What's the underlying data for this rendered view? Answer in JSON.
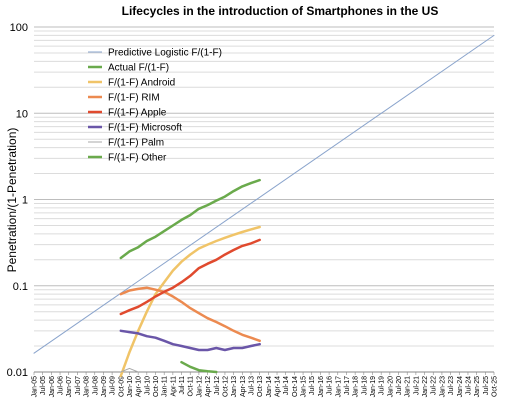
{
  "chart_data": {
    "type": "line",
    "title": "Lifecycles in the introduction of Smartphones in the US",
    "ylabel": "Penetration/(1-Penetration)",
    "xlabel": "",
    "yscale": "log",
    "ylim": [
      0.01,
      100
    ],
    "yticks": [
      {
        "value": 0.01,
        "label": "0.01"
      },
      {
        "value": 0.1,
        "label": "0.1"
      },
      {
        "value": 1,
        "label": "1"
      },
      {
        "value": 10,
        "label": "10"
      },
      {
        "value": 100,
        "label": "100"
      }
    ],
    "grid": "horizontal minor lines (log)",
    "legend_position": "top-left",
    "x_categories": [
      "Jan-05",
      "Jul-05",
      "Jan-06",
      "Jul-06",
      "Jan-07",
      "Jul-07",
      "Jan-08",
      "Jul-08",
      "Jan-09",
      "Jul-09",
      "Oct-09",
      "Jan-10",
      "Apr-10",
      "Jul-10",
      "Oct-10",
      "Jan-11",
      "Apr-11",
      "Jul-11",
      "Oct-11",
      "Jan-12",
      "Apr-12",
      "Jul-12",
      "Oct-12",
      "Jan-13",
      "Apr-13",
      "Jul-13",
      "Oct-13",
      "Jan-14",
      "Apr-14",
      "Jul-14",
      "Oct-14",
      "Jan-15",
      "Jul-15",
      "Jan-16",
      "Jul-16",
      "Jan-17",
      "Jul-17",
      "Jan-18",
      "Jul-18",
      "Jan-19",
      "Jul-19",
      "Jan-20",
      "Jul-20",
      "Jan-21",
      "Jul-21",
      "Jan-22",
      "Jul-22",
      "Jan-23",
      "Jul-23",
      "Jan-24",
      "Jul-24",
      "Jan-25",
      "Jul-25",
      "Oct-25"
    ],
    "x_tick_labels": [
      "Jan-05",
      "Jul-05",
      "Jan-06",
      "Jul-06",
      "Jan-07",
      "Jul-07",
      "Jan-08",
      "Jul-08",
      "Jan-09",
      "Jul-09",
      "Oct-09",
      "Jan-10",
      "Apr-10",
      "Jul-10",
      "Oct-10",
      "Jan-11",
      "Apr-11",
      "Jul-11",
      "Oct-11",
      "Jan-12",
      "Apr-12",
      "Jul-12",
      "Oct-12",
      "Jan-13",
      "Apr-13",
      "Jul-13",
      "Oct-13",
      "Jan-14",
      "Apr-14",
      "Jul-14",
      "Oct-14",
      "Jan-15",
      "Jul-15",
      "Jan-16",
      "Jul-16",
      "Jan-17",
      "Jul-17",
      "Jan-18",
      "Jul-18",
      "Jan-19",
      "Jul-19",
      "Jan-20",
      "Jul-20",
      "Jan-21",
      "Jul-21",
      "Jan-22",
      "Jul-22",
      "Jan-23",
      "Jul-23",
      "Jan-24",
      "Jul-24",
      "Jan-25",
      "Jul-25",
      "Oct-25"
    ],
    "series": [
      {
        "name": "Predictive Logistic F/(1-F)",
        "color": "#8aa4cc",
        "width": 1,
        "points": [
          [
            "Jan-05",
            0.0165
          ],
          [
            "Oct-25",
            80
          ]
        ]
      },
      {
        "name": "Actual F/(1-F)",
        "color": "#6aaa4c",
        "width": 2.5,
        "points": [
          [
            "Oct-09",
            0.21
          ],
          [
            "Jan-10",
            0.25
          ],
          [
            "Apr-10",
            0.28
          ],
          [
            "Jul-10",
            0.33
          ],
          [
            "Oct-10",
            0.37
          ],
          [
            "Jan-11",
            0.43
          ],
          [
            "Apr-11",
            0.5
          ],
          [
            "Jul-11",
            0.58
          ],
          [
            "Oct-11",
            0.66
          ],
          [
            "Jan-12",
            0.78
          ],
          [
            "Apr-12",
            0.86
          ],
          [
            "Jul-12",
            0.97
          ],
          [
            "Oct-12",
            1.08
          ],
          [
            "Jan-13",
            1.25
          ],
          [
            "Apr-13",
            1.42
          ],
          [
            "Jul-13",
            1.55
          ],
          [
            "Oct-13",
            1.68
          ]
        ]
      },
      {
        "name": "F/(1-F) Android",
        "color": "#f0c468",
        "width": 2.5,
        "points": [
          [
            "Oct-09",
            0.009
          ],
          [
            "Jan-10",
            0.017
          ],
          [
            "Apr-10",
            0.03
          ],
          [
            "Jul-10",
            0.05
          ],
          [
            "Oct-10",
            0.08
          ],
          [
            "Jan-11",
            0.11
          ],
          [
            "Apr-11",
            0.15
          ],
          [
            "Jul-11",
            0.19
          ],
          [
            "Oct-11",
            0.23
          ],
          [
            "Jan-12",
            0.27
          ],
          [
            "Apr-12",
            0.3
          ],
          [
            "Jul-12",
            0.33
          ],
          [
            "Oct-12",
            0.36
          ],
          [
            "Jan-13",
            0.39
          ],
          [
            "Apr-13",
            0.42
          ],
          [
            "Jul-13",
            0.45
          ],
          [
            "Oct-13",
            0.48
          ]
        ]
      },
      {
        "name": "F/(1-F) RIM",
        "color": "#ec8a50",
        "width": 2.5,
        "points": [
          [
            "Oct-09",
            0.08
          ],
          [
            "Jan-10",
            0.088
          ],
          [
            "Apr-10",
            0.092
          ],
          [
            "Jul-10",
            0.095
          ],
          [
            "Oct-10",
            0.09
          ],
          [
            "Jan-11",
            0.085
          ],
          [
            "Apr-11",
            0.075
          ],
          [
            "Jul-11",
            0.065
          ],
          [
            "Oct-11",
            0.055
          ],
          [
            "Jan-12",
            0.048
          ],
          [
            "Apr-12",
            0.042
          ],
          [
            "Jul-12",
            0.038
          ],
          [
            "Oct-12",
            0.034
          ],
          [
            "Jan-13",
            0.03
          ],
          [
            "Apr-13",
            0.027
          ],
          [
            "Jul-13",
            0.025
          ],
          [
            "Oct-13",
            0.023
          ]
        ]
      },
      {
        "name": "F/(1-F) Apple",
        "color": "#e04a2e",
        "width": 2.5,
        "points": [
          [
            "Oct-09",
            0.047
          ],
          [
            "Jan-10",
            0.052
          ],
          [
            "Apr-10",
            0.057
          ],
          [
            "Jul-10",
            0.065
          ],
          [
            "Oct-10",
            0.075
          ],
          [
            "Jan-11",
            0.085
          ],
          [
            "Apr-11",
            0.095
          ],
          [
            "Jul-11",
            0.11
          ],
          [
            "Oct-11",
            0.13
          ],
          [
            "Jan-12",
            0.16
          ],
          [
            "Apr-12",
            0.18
          ],
          [
            "Jul-12",
            0.2
          ],
          [
            "Oct-12",
            0.23
          ],
          [
            "Jan-13",
            0.26
          ],
          [
            "Apr-13",
            0.29
          ],
          [
            "Jul-13",
            0.31
          ],
          [
            "Oct-13",
            0.34
          ]
        ]
      },
      {
        "name": "F/(1-F) Microsoft",
        "color": "#6a56a8",
        "width": 2.5,
        "points": [
          [
            "Oct-09",
            0.03
          ],
          [
            "Jan-10",
            0.029
          ],
          [
            "Apr-10",
            0.028
          ],
          [
            "Jul-10",
            0.026
          ],
          [
            "Oct-10",
            0.025
          ],
          [
            "Jan-11",
            0.023
          ],
          [
            "Apr-11",
            0.021
          ],
          [
            "Jul-11",
            0.02
          ],
          [
            "Oct-11",
            0.019
          ],
          [
            "Jan-12",
            0.018
          ],
          [
            "Apr-12",
            0.018
          ],
          [
            "Jul-12",
            0.019
          ],
          [
            "Oct-12",
            0.018
          ],
          [
            "Jan-13",
            0.019
          ],
          [
            "Apr-13",
            0.019
          ],
          [
            "Jul-13",
            0.02
          ],
          [
            "Oct-13",
            0.021
          ]
        ]
      },
      {
        "name": "F/(1-F) Palm",
        "color": "#a8a8a8",
        "width": 1,
        "points": [
          [
            "Oct-09",
            0.01
          ],
          [
            "Jan-10",
            0.011
          ],
          [
            "Apr-10",
            0.01
          ]
        ]
      },
      {
        "name": "F/(1-F) Other",
        "color": "#6aaa4c",
        "width": 2.5,
        "points": [
          [
            "Jul-11",
            0.013
          ],
          [
            "Oct-11",
            0.0115
          ],
          [
            "Jan-12",
            0.0105
          ],
          [
            "Apr-12",
            0.0102
          ],
          [
            "Jul-12",
            0.01
          ]
        ]
      }
    ]
  }
}
